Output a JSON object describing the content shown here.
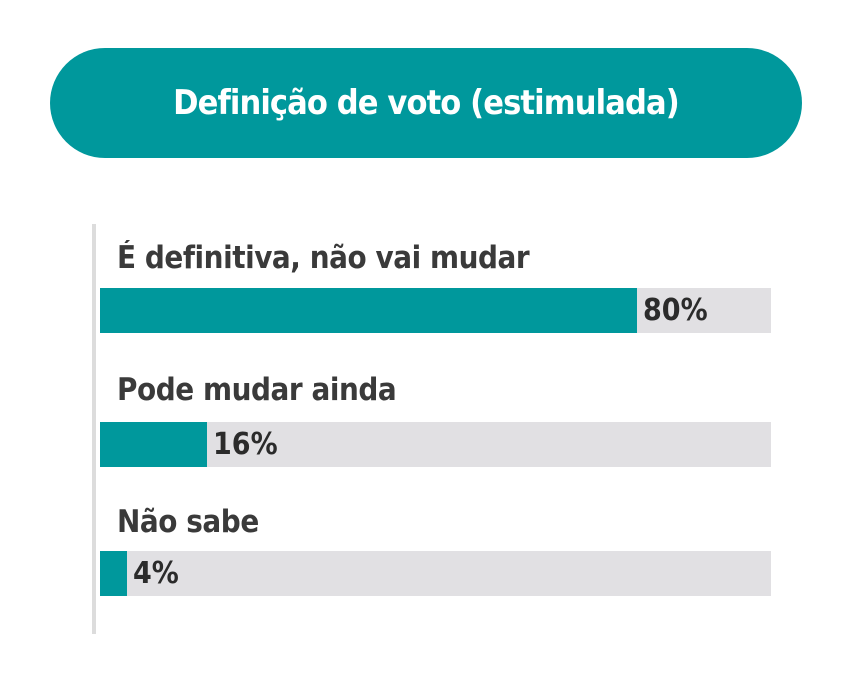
{
  "colors": {
    "accent": "#00989c",
    "track": "#e1e0e3",
    "text": "#3a3a3a"
  },
  "title": "Definição de voto (estimulada)",
  "chart_data": {
    "type": "bar",
    "orientation": "horizontal",
    "title": "Definição de voto (estimulada)",
    "categories": [
      "É definitiva, não vai mudar",
      "Pode mudar ainda",
      "Não sabe"
    ],
    "values": [
      80,
      16,
      4
    ],
    "value_labels": [
      "80%",
      "16%",
      "4%"
    ],
    "xlim": [
      0,
      100
    ],
    "grid": false
  }
}
